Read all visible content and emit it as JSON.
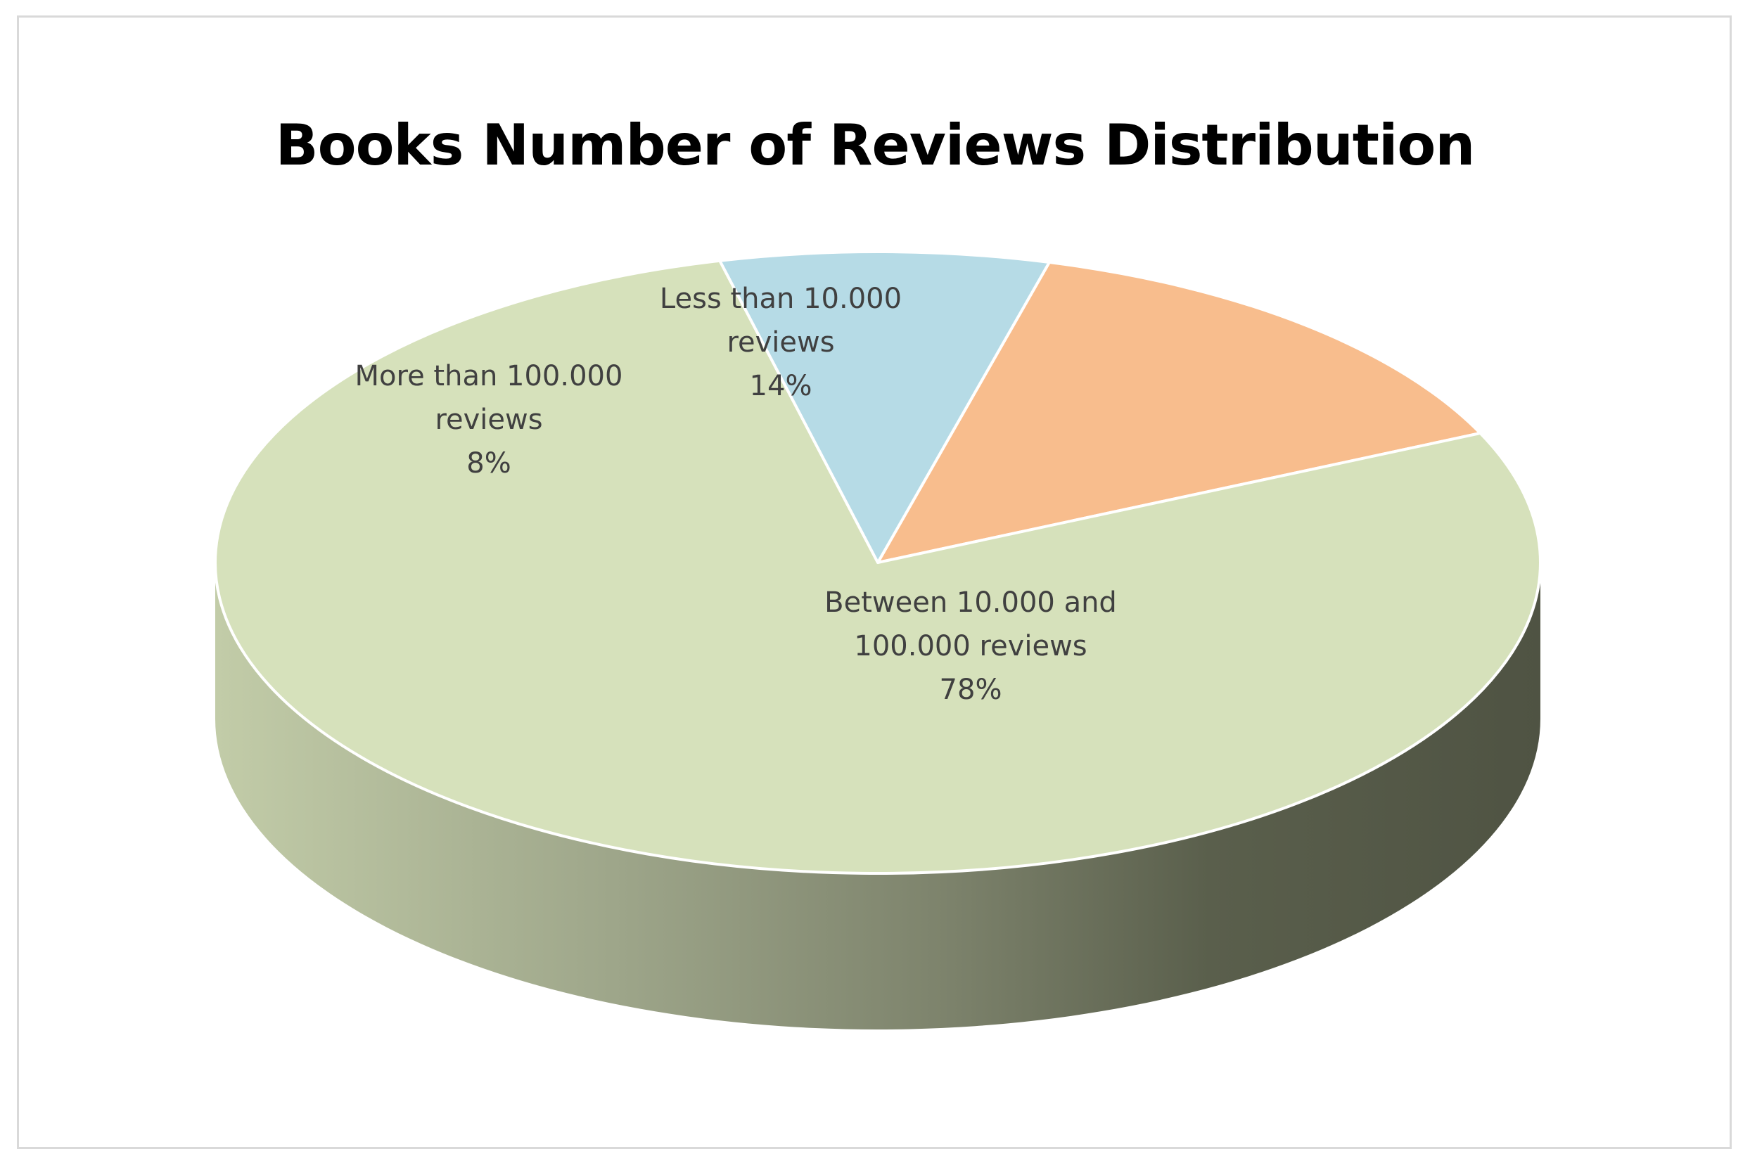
{
  "chart_data": {
    "type": "pie",
    "title": "Books Number of Reviews Distribution",
    "slices": [
      {
        "label_lines": [
          "Less than  10.000",
          "reviews"
        ],
        "value_label": "14%",
        "value": 14,
        "color": "#f8bd8d"
      },
      {
        "label_lines": [
          "Between 10.000 and",
          "100.000 reviews"
        ],
        "value_label": "78%",
        "value": 78,
        "color": "#d6e1bb"
      },
      {
        "label_lines": [
          "More  than  100.000",
          "reviews"
        ],
        "value_label": "8%",
        "value": 8,
        "color": "#b6dbe6"
      }
    ],
    "legend": "none",
    "style": "3d"
  }
}
